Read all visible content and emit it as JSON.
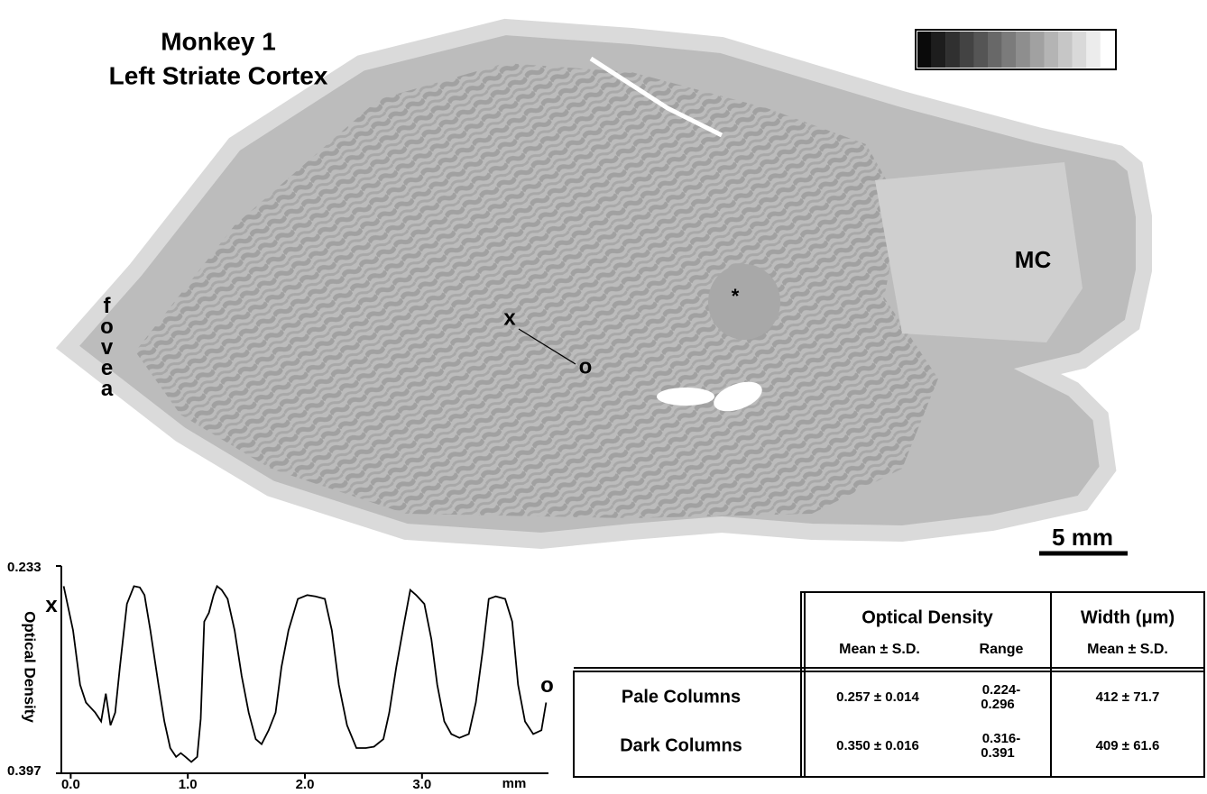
{
  "figure": {
    "title": [
      "Monkey 1",
      "Left Striate Cortex"
    ]
  },
  "image": {
    "fovea": "fovea",
    "x": "x",
    "o": "o",
    "star": "*",
    "mc": "MC",
    "scale": "5 mm"
  },
  "chart_data": {
    "type": "line",
    "ylabel": "Optical Density",
    "xlabel": "mm",
    "annotations": [
      "x",
      "o"
    ],
    "color": "#000000",
    "x": [
      -0.06,
      0.02,
      0.08,
      0.13,
      0.21,
      0.26,
      0.3,
      0.34,
      0.38,
      0.42,
      0.48,
      0.54,
      0.59,
      0.63,
      0.68,
      0.75,
      0.8,
      0.85,
      0.9,
      0.94,
      0.98,
      1.03,
      1.08,
      1.11,
      1.14,
      1.18,
      1.22,
      1.25,
      1.29,
      1.34,
      1.4,
      1.46,
      1.52,
      1.58,
      1.63,
      1.69,
      1.75,
      1.8,
      1.86,
      1.94,
      2.02,
      2.09,
      2.17,
      2.23,
      2.29,
      2.36,
      2.44,
      2.52,
      2.59,
      2.67,
      2.72,
      2.78,
      2.85,
      2.9,
      2.95,
      3.02,
      3.08,
      3.13,
      3.19,
      3.25,
      3.32,
      3.4,
      3.46,
      3.52,
      3.57,
      3.63,
      3.71,
      3.77,
      3.82,
      3.88,
      3.95,
      4.02,
      4.06
    ],
    "values": [
      0.249,
      0.284,
      0.327,
      0.341,
      0.349,
      0.356,
      0.334,
      0.359,
      0.349,
      0.313,
      0.263,
      0.249,
      0.25,
      0.256,
      0.284,
      0.327,
      0.356,
      0.377,
      0.384,
      0.381,
      0.384,
      0.388,
      0.384,
      0.354,
      0.277,
      0.27,
      0.256,
      0.249,
      0.252,
      0.259,
      0.284,
      0.32,
      0.349,
      0.37,
      0.374,
      0.363,
      0.349,
      0.313,
      0.284,
      0.259,
      0.256,
      0.257,
      0.259,
      0.284,
      0.327,
      0.359,
      0.377,
      0.377,
      0.376,
      0.37,
      0.349,
      0.313,
      0.277,
      0.252,
      0.256,
      0.263,
      0.291,
      0.327,
      0.356,
      0.366,
      0.369,
      0.366,
      0.341,
      0.299,
      0.259,
      0.257,
      0.259,
      0.277,
      0.327,
      0.356,
      0.366,
      0.363,
      0.341
    ],
    "xlim": [
      -0.08,
      4.08
    ],
    "ylim": [
      0.397,
      0.233
    ],
    "xticks": [
      {
        "value": 0,
        "label": "0.0"
      },
      {
        "value": 1,
        "label": "1.0"
      },
      {
        "value": 2,
        "label": "2.0"
      },
      {
        "value": 3,
        "label": "3.0"
      }
    ],
    "yticks": [
      0.233,
      0.397
    ]
  },
  "table": {
    "header": {
      "od": "Optical Density",
      "width": "Width (μm)",
      "sub": [
        "Mean ± S.D.",
        "Range",
        "Mean ± S.D."
      ]
    },
    "rows": [
      [
        "Pale Columns",
        "0.257 ± 0.014",
        [
          "0.224-",
          "0.296"
        ],
        "412 ± 71.7"
      ],
      [
        "Dark Columns",
        "0.350 ± 0.016",
        [
          "0.316-",
          "0.391"
        ],
        "409 ± 61.6"
      ]
    ]
  }
}
